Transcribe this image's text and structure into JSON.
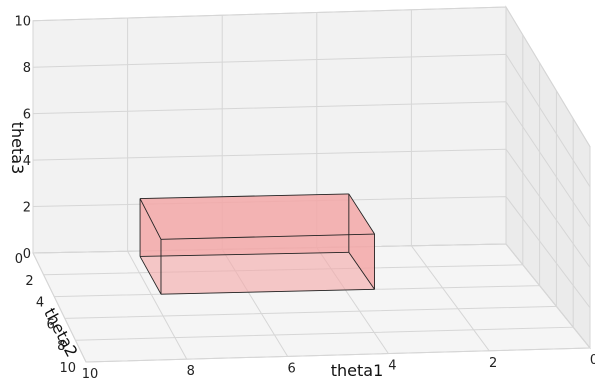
{
  "chart_data": {
    "type": "3d-box",
    "xlabel": "theta1",
    "ylabel": "theta2",
    "zlabel": "theta3",
    "xlim": [
      0,
      10
    ],
    "ylim": [
      0,
      10
    ],
    "zlim": [
      0,
      10
    ],
    "x_ticks": [
      "0",
      "2",
      "4",
      "6",
      "8",
      "10"
    ],
    "y_ticks": [
      "0",
      "2",
      "4",
      "6",
      "8",
      "10"
    ],
    "z_ticks": [
      "0",
      "2",
      "4",
      "6",
      "8",
      "10"
    ],
    "grid": true,
    "box": {
      "x_range": [
        3.4,
        7.8
      ],
      "y_range": [
        0.5,
        4.0
      ],
      "z_range": [
        0.0,
        2.5
      ],
      "face_color": "#f4a6a6",
      "edge_color": "#222222"
    }
  }
}
